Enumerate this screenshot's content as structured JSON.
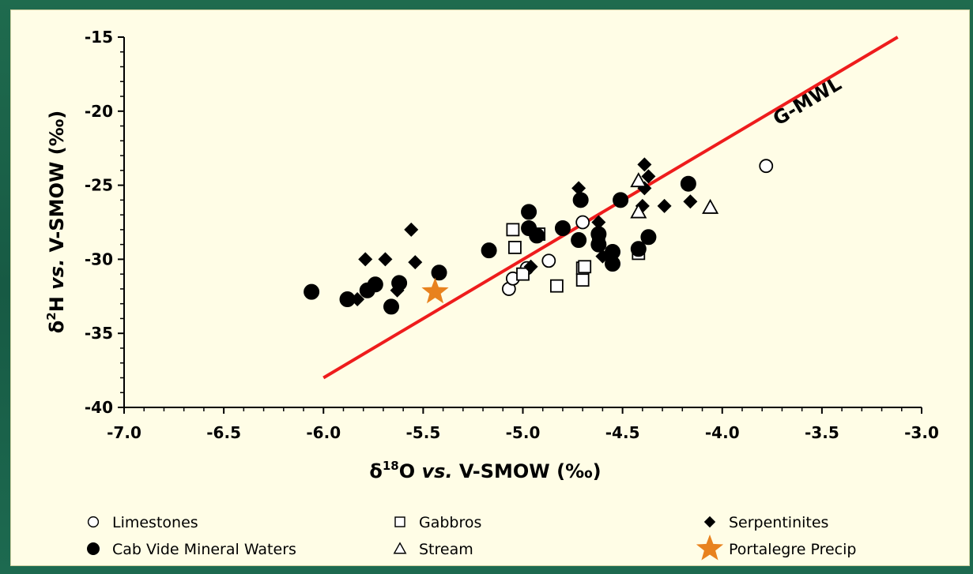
{
  "chart_data": {
    "type": "scatter",
    "xlabel_prefix": "δ",
    "xlabel_sup": "18",
    "xlabel_main": "O",
    "xlabel_vs": "vs.",
    "xlabel_rest": "V-SMOW (‰)",
    "ylabel_prefix": "δ",
    "ylabel_sup": "2",
    "ylabel_main": "H",
    "ylabel_vs": "vs.",
    "ylabel_rest": "V-SMOW (‰)",
    "xlim": [
      -7.0,
      -3.0
    ],
    "ylim": [
      -40,
      -15
    ],
    "x_ticks": [
      "-7.0",
      "-6.5",
      "-6.0",
      "-5.5",
      "-5.0",
      "-4.5",
      "-4.0",
      "-3.5",
      "-3.0"
    ],
    "x_tick_values": [
      -7.0,
      -6.5,
      -6.0,
      -5.5,
      -5.0,
      -4.5,
      -4.0,
      -3.5,
      -3.0
    ],
    "y_ticks": [
      "-15",
      "-20",
      "-25",
      "-30",
      "-35",
      "-40"
    ],
    "y_tick_values": [
      -15,
      -20,
      -25,
      -30,
      -35,
      -40
    ],
    "grid": false,
    "legend_position": "bottom",
    "reference_line": {
      "name": "G-MWL",
      "color": "#ee1c1c",
      "points": [
        [
          -6.0,
          -38.0
        ],
        [
          -3.12,
          -15.0
        ]
      ]
    },
    "series": [
      {
        "name": "Limestones",
        "marker": "circle-open",
        "color": "#000000",
        "points": [
          [
            -5.07,
            -32.0
          ],
          [
            -5.05,
            -31.3
          ],
          [
            -4.98,
            -30.6
          ],
          [
            -4.87,
            -30.1
          ],
          [
            -4.7,
            -27.5
          ],
          [
            -3.78,
            -23.7
          ]
        ]
      },
      {
        "name": "Gabbros",
        "marker": "square-open",
        "color": "#000000",
        "points": [
          [
            -5.05,
            -28.0
          ],
          [
            -5.04,
            -29.2
          ],
          [
            -5.0,
            -31.0
          ],
          [
            -4.92,
            -28.3
          ],
          [
            -4.83,
            -31.8
          ],
          [
            -4.7,
            -31.4
          ],
          [
            -4.7,
            -30.6
          ],
          [
            -4.69,
            -30.5
          ],
          [
            -4.62,
            -28.8
          ],
          [
            -4.42,
            -29.6
          ]
        ]
      },
      {
        "name": "Serpentinites",
        "marker": "diamond",
        "color": "#000000",
        "points": [
          [
            -5.83,
            -32.7
          ],
          [
            -5.79,
            -30.0
          ],
          [
            -5.69,
            -30.0
          ],
          [
            -5.63,
            -32.1
          ],
          [
            -5.56,
            -28.0
          ],
          [
            -5.54,
            -30.2
          ],
          [
            -4.96,
            -30.5
          ],
          [
            -4.72,
            -25.2
          ],
          [
            -4.62,
            -27.5
          ],
          [
            -4.6,
            -29.8
          ],
          [
            -4.4,
            -26.4
          ],
          [
            -4.39,
            -23.6
          ],
          [
            -4.39,
            -25.2
          ],
          [
            -4.37,
            -24.4
          ],
          [
            -4.29,
            -26.4
          ],
          [
            -4.16,
            -26.1
          ]
        ]
      },
      {
        "name": "Cab Vide Mineral Waters",
        "marker": "circle",
        "color": "#000000",
        "points": [
          [
            -6.06,
            -32.2
          ],
          [
            -5.88,
            -32.7
          ],
          [
            -5.78,
            -32.1
          ],
          [
            -5.74,
            -31.7
          ],
          [
            -5.66,
            -33.2
          ],
          [
            -5.62,
            -31.6
          ],
          [
            -5.42,
            -30.9
          ],
          [
            -5.17,
            -29.4
          ],
          [
            -4.97,
            -26.8
          ],
          [
            -4.97,
            -27.9
          ],
          [
            -4.93,
            -28.4
          ],
          [
            -4.8,
            -27.9
          ],
          [
            -4.72,
            -28.7
          ],
          [
            -4.71,
            -26.0
          ],
          [
            -4.62,
            -28.3
          ],
          [
            -4.62,
            -29.0
          ],
          [
            -4.55,
            -30.3
          ],
          [
            -4.55,
            -29.5
          ],
          [
            -4.51,
            -26.0
          ],
          [
            -4.42,
            -29.3
          ],
          [
            -4.37,
            -28.5
          ],
          [
            -4.17,
            -24.9
          ]
        ]
      },
      {
        "name": "Stream",
        "marker": "triangle-open",
        "color": "#000000",
        "points": [
          [
            -4.42,
            -24.7
          ],
          [
            -4.42,
            -26.8
          ],
          [
            -4.06,
            -26.5
          ]
        ]
      },
      {
        "name": "Portalegre Precip",
        "marker": "star",
        "color": "#e8821e",
        "points": [
          [
            -5.44,
            -32.2
          ]
        ]
      }
    ]
  },
  "legend": {
    "items": [
      {
        "label": "Limestones",
        "marker": "circle-open"
      },
      {
        "label": "Gabbros",
        "marker": "square-open"
      },
      {
        "label": "Serpentinites",
        "marker": "diamond"
      },
      {
        "label": "Cab Vide Mineral Waters",
        "marker": "circle"
      },
      {
        "label": "Stream",
        "marker": "triangle-open"
      },
      {
        "label": "Portalegre Precip",
        "marker": "star"
      }
    ]
  }
}
